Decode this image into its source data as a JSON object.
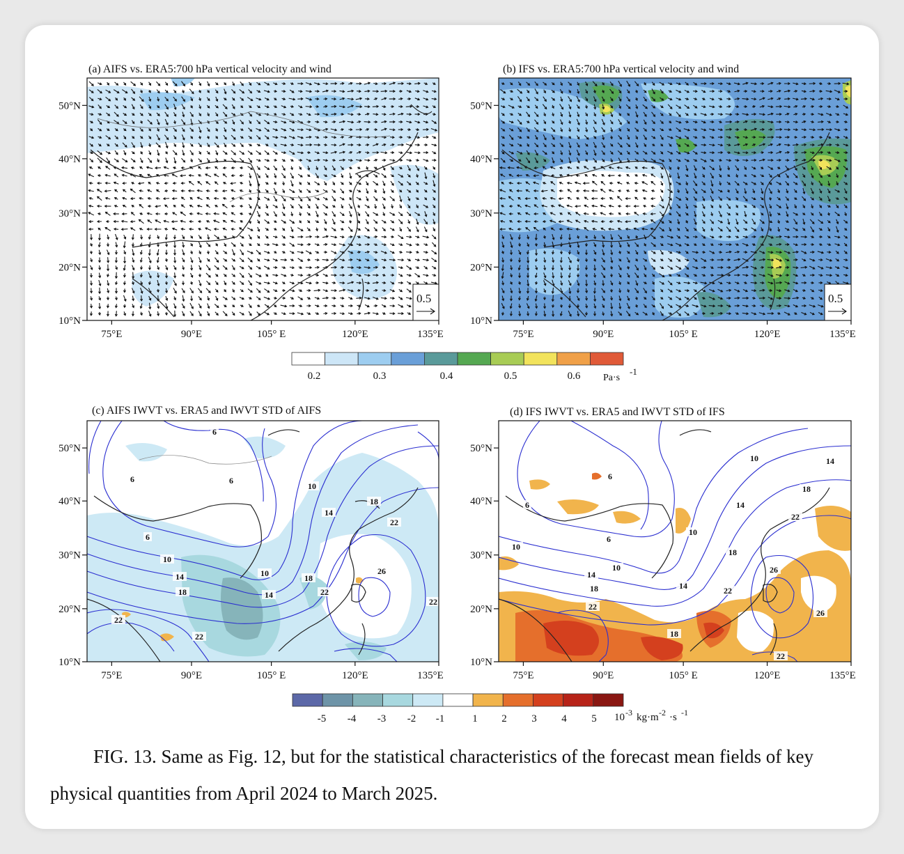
{
  "panels": [
    {
      "title": "(a) AIFS vs. ERA5:700 hPa vertical velocity and wind",
      "ref_vector": "0.5"
    },
    {
      "title": "(b) IFS vs. ERA5:700 hPa vertical velocity and wind",
      "ref_vector": "0.5"
    },
    {
      "title": "(c) AIFS IWVT vs. ERA5 and IWVT STD of AIFS",
      "contour_labels": [
        "6",
        "6",
        "6",
        "6",
        "10",
        "10",
        "10",
        "14",
        "14",
        "14",
        "18",
        "18",
        "18",
        "22",
        "22",
        "22",
        "22",
        "22",
        "26"
      ]
    },
    {
      "title": "(d) IFS IWVT vs. ERA5 and IWVT STD of IFS",
      "contour_labels": [
        "6",
        "6",
        "6",
        "10",
        "10",
        "10",
        "10",
        "14",
        "14",
        "14",
        "14",
        "18",
        "18",
        "18",
        "18",
        "22",
        "22",
        "22",
        "22",
        "26",
        "26"
      ]
    }
  ],
  "lat_labels": [
    "50°N",
    "40°N",
    "30°N",
    "20°N",
    "10°N"
  ],
  "lon_labels": [
    "75°E",
    "90°E",
    "105° E",
    "120°E",
    "135°E"
  ],
  "colorbar1": {
    "colors": [
      "#ffffff",
      "#cde6f7",
      "#9dcdf0",
      "#6a9fd8",
      "#5a9a9a",
      "#55a852",
      "#a8cc55",
      "#f2e35c",
      "#f0a048",
      "#e05a38"
    ],
    "labels": [
      "0.2",
      "0.3",
      "0.4",
      "0.5",
      "0.6"
    ],
    "unit": "Pa·s",
    "unit_exp": "-1"
  },
  "colorbar2": {
    "colors": [
      "#5c68a8",
      "#6e94a8",
      "#86b4ba",
      "#a8d8df",
      "#cde9f5",
      "#ffffff",
      "#f1b44c",
      "#e56f2c",
      "#d4401e",
      "#b72318",
      "#8a1712"
    ],
    "labels": [
      "-5",
      "-4",
      "-3",
      "-2",
      "-1",
      "1",
      "2",
      "3",
      "4",
      "5"
    ],
    "unit_prefix": "10",
    "unit_exp1": "-3",
    "unit_mid": "kg·m",
    "unit_exp2": "-2",
    "unit_tail": "·s",
    "unit_exp3": "-1"
  },
  "caption": "FIG. 13. Same as Fig. 12, but for the statistical characteristics of the forecast mean fields of key physical quantities from April 2024 to March 2025."
}
